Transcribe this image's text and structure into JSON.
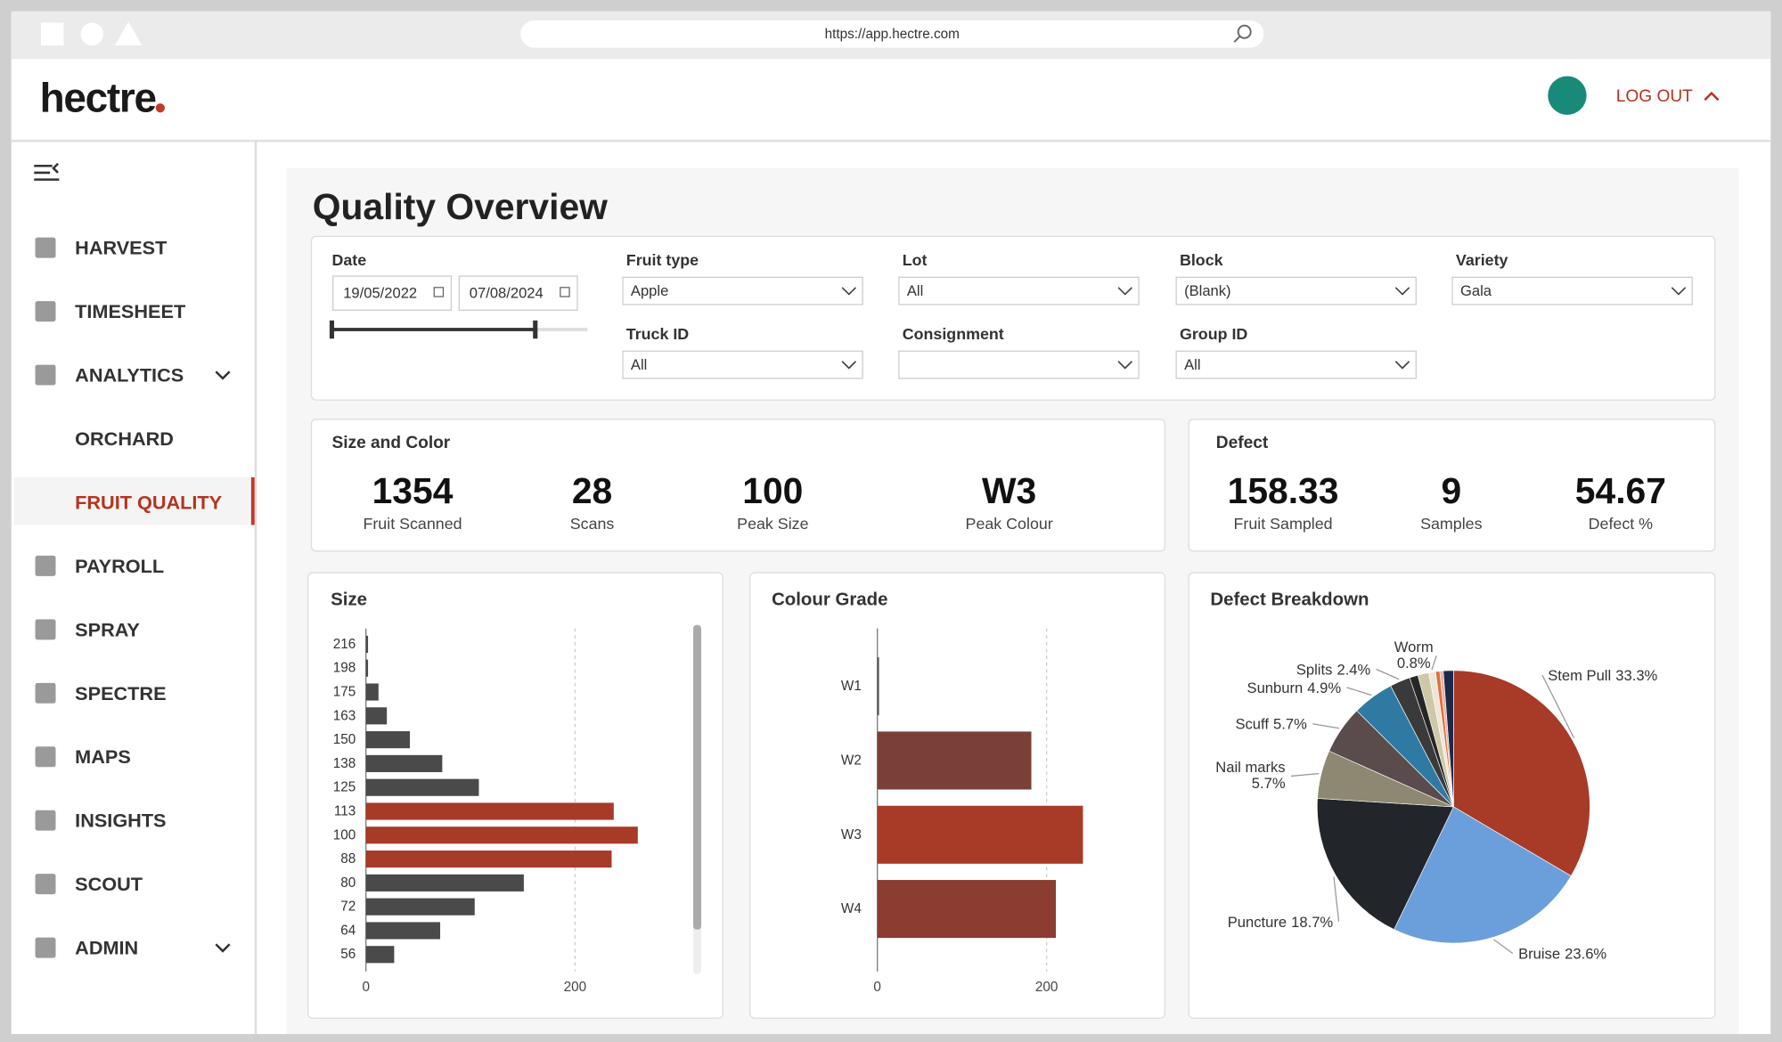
{
  "browser": {
    "url": "https://app.hectre.com"
  },
  "header": {
    "logo": "hectre",
    "logout": "LOG OUT"
  },
  "nav": {
    "items": [
      {
        "label": "HARVEST"
      },
      {
        "label": "TIMESHEET"
      },
      {
        "label": "ANALYTICS",
        "expandable": true
      },
      {
        "label": "ORCHARD",
        "sub": true
      },
      {
        "label": "FRUIT QUALITY",
        "sub": true,
        "active": true
      },
      {
        "label": "PAYROLL"
      },
      {
        "label": "SPRAY"
      },
      {
        "label": "SPECTRE"
      },
      {
        "label": "MAPS"
      },
      {
        "label": "INSIGHTS"
      },
      {
        "label": "SCOUT"
      },
      {
        "label": "ADMIN",
        "expandable": true
      }
    ]
  },
  "page_title": "Quality Overview",
  "date_filter": {
    "label": "Date",
    "from": "19/05/2022",
    "to": "07/08/2024"
  },
  "filters": [
    {
      "label": "Fruit type",
      "value": "Apple"
    },
    {
      "label": "Lot",
      "value": "All"
    },
    {
      "label": "Block",
      "value": "(Blank)"
    },
    {
      "label": "Variety",
      "value": "Gala"
    },
    {
      "label": "Truck ID",
      "value": "All"
    },
    {
      "label": "Consignment"
    },
    {
      "label": "Group ID",
      "value": "All"
    }
  ],
  "size_color": {
    "title": "Size and Color",
    "stats": [
      {
        "value": 1354,
        "label": "Fruit Scanned"
      },
      {
        "value": 28,
        "label": "Scans"
      },
      {
        "value": 100,
        "label": "Peak Size"
      },
      {
        "value": "W3",
        "label": "Peak Colour"
      }
    ]
  },
  "defect": {
    "title": "Defect",
    "stats": [
      {
        "value": 158.33,
        "label": "Fruit Sampled"
      },
      {
        "value": 9,
        "label": "Samples"
      },
      {
        "value": 54.67,
        "label": "Defect %"
      }
    ]
  },
  "size_chart": {
    "type": "bar",
    "title": "Size",
    "categories": [
      216,
      198,
      175,
      163,
      150,
      138,
      125,
      113,
      100,
      88,
      80,
      72,
      64,
      56
    ],
    "values": [
      2,
      2,
      12,
      20,
      42,
      73,
      108,
      237,
      260,
      235,
      151,
      104,
      71,
      27
    ],
    "colors": [
      "#4a4a4a",
      "#4a4a4a",
      "#4a4a4a",
      "#4a4a4a",
      "#4a4a4a",
      "#4a4a4a",
      "#4a4a4a",
      "#a83a28",
      "#a83a28",
      "#a83a28",
      "#4a4a4a",
      "#4a4a4a",
      "#4a4a4a",
      "#4a4a4a"
    ],
    "xlim": [
      0,
      300
    ],
    "xticks": [
      0,
      200
    ]
  },
  "colour_chart": {
    "type": "bar",
    "title": "Colour Grade",
    "categories": [
      "W1",
      "W2",
      "W3",
      "W4"
    ],
    "values": [
      2,
      182,
      243,
      211
    ],
    "colors": [
      "#555555",
      "#7a4038",
      "#a83a28",
      "#8a3d30"
    ],
    "xlim": [
      0,
      270
    ],
    "xticks": [
      0,
      200
    ]
  },
  "defect_chart": {
    "type": "pie",
    "title": "Defect Breakdown",
    "categories": [
      "Stem Pull",
      "Bruise",
      "Puncture",
      "Nail marks",
      "Scuff",
      "Sunburn",
      "Splits",
      null,
      null,
      "Worm",
      null,
      null,
      null
    ],
    "values": [
      33.3,
      23.6,
      18.7,
      5.7,
      5.7,
      4.9,
      2.4,
      1.0,
      1.3,
      0.8,
      0.5,
      0.4,
      1.2
    ],
    "value_labels": [
      "33.3%",
      "23.6%",
      "18.7%",
      "5.7%",
      "5.7%",
      "4.9%",
      "2.4%",
      null,
      null,
      "0.8%",
      null,
      null,
      null
    ],
    "colors": [
      "#a83a28",
      "#6a9fdc",
      "#22262b",
      "#8e8872",
      "#5a4c4c",
      "#2f7aa3",
      "#3a3a3a",
      "#262626",
      "#cfc8a8",
      "#ece6d6",
      "#e07040",
      "#e8b0a0",
      "#1c2a4a"
    ]
  }
}
